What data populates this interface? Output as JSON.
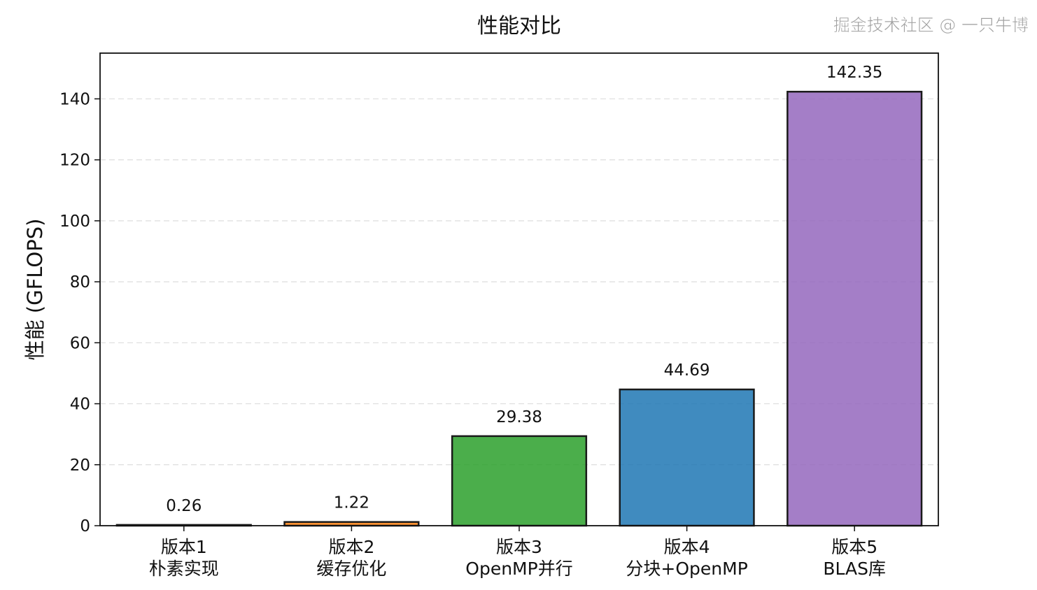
{
  "chart_data": {
    "type": "bar",
    "title": "性能对比",
    "xlabel": "",
    "ylabel": "性能 (GFLOPS)",
    "categories": [
      "版本1\n朴素实现",
      "版本2\n缓存优化",
      "版本3\nOpenMP并行",
      "版本4\n分块+OpenMP",
      "版本5\nBLAS库"
    ],
    "values": [
      0.26,
      1.22,
      29.38,
      44.69,
      142.35
    ],
    "data_labels": [
      "0.26",
      "1.22",
      "29.38",
      "44.69",
      "142.35"
    ],
    "colors": [
      "#d62728",
      "#ff7f0e",
      "#2ca02c",
      "#1f77b4",
      "#9467bd"
    ],
    "bar_alpha": 0.85,
    "edge_color": "#1a1a1a",
    "ylim": [
      0,
      155
    ],
    "yticks": [
      0,
      20,
      40,
      60,
      80,
      100,
      120,
      140
    ],
    "grid": "y dashed",
    "legend": "none"
  },
  "watermark": "掘金技术社区 @ 一只牛博"
}
